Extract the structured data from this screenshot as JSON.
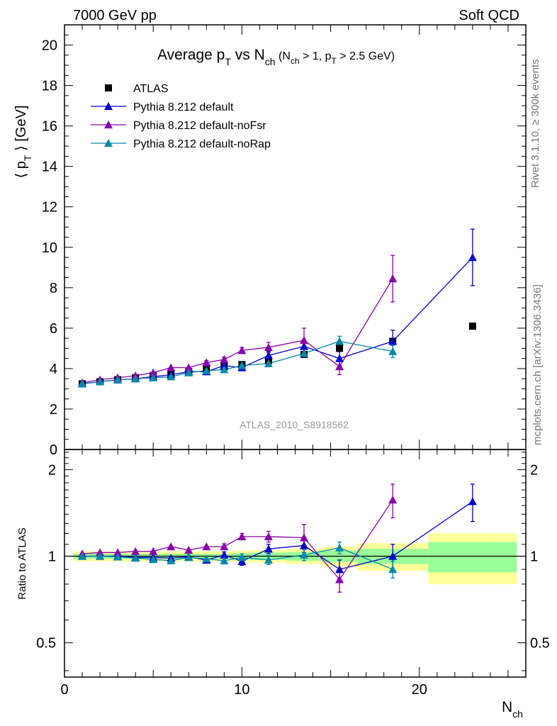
{
  "header": {
    "left": "7000 GeV pp",
    "right": "Soft QCD"
  },
  "side_text": {
    "rivet": "Rivet 3.1.10, ≥ 300k events",
    "mcplots": "mcplots.cern.ch [arXiv:1306.3436]"
  },
  "analysis_id": "ATLAS_2010_S8918562",
  "colors": {
    "atlas": "#000000",
    "default": "#0000cc",
    "noFsr": "#8800aa",
    "noRap": "#0088aa",
    "band_outer": "#ffff99",
    "band_inner": "#99ff99"
  },
  "chart_data": [
    {
      "type": "scatter",
      "panel": "main",
      "title": {
        "main": "Average p",
        "main_sub": "T",
        "vs": " vs N",
        "vs_sub": "ch",
        "cond1": " (N",
        "cond1_sub": "ch",
        "cond2": " > 1, p",
        "cond2_sub": "T",
        "cond3": " > 2.5 GeV)"
      },
      "ylabel": {
        "left": "⟨ p",
        "sub": "T",
        "right": " ⟩  [GeV]"
      },
      "xlim": [
        0,
        26
      ],
      "ylim": [
        0,
        21
      ],
      "yticks": [
        "0",
        "2",
        "4",
        "6",
        "8",
        "10",
        "12",
        "14",
        "16",
        "18",
        "20"
      ],
      "series": [
        {
          "name": "ATLAS",
          "marker": "square",
          "points": [
            {
              "x": 1,
              "y": 3.25
            },
            {
              "x": 2,
              "y": 3.35
            },
            {
              "x": 3,
              "y": 3.45
            },
            {
              "x": 4,
              "y": 3.55
            },
            {
              "x": 5,
              "y": 3.65
            },
            {
              "x": 6,
              "y": 3.75
            },
            {
              "x": 7,
              "y": 3.85
            },
            {
              "x": 8,
              "y": 3.98
            },
            {
              "x": 9,
              "y": 4.1
            },
            {
              "x": 10,
              "y": 4.2
            },
            {
              "x": 11.5,
              "y": 4.4
            },
            {
              "x": 13.5,
              "y": 4.7
            },
            {
              "x": 15.5,
              "y": 5.0
            },
            {
              "x": 18.5,
              "y": 5.35
            },
            {
              "x": 23,
              "y": 6.1
            }
          ]
        },
        {
          "name": "Pythia 8.212 default",
          "marker": "triangle",
          "points": [
            {
              "x": 1,
              "y": 3.25,
              "err": 0.05
            },
            {
              "x": 2,
              "y": 3.35,
              "err": 0.05
            },
            {
              "x": 3,
              "y": 3.45,
              "err": 0.05
            },
            {
              "x": 4,
              "y": 3.5,
              "err": 0.05
            },
            {
              "x": 5,
              "y": 3.6,
              "err": 0.05
            },
            {
              "x": 6,
              "y": 3.7,
              "err": 0.05
            },
            {
              "x": 7,
              "y": 3.85,
              "err": 0.05
            },
            {
              "x": 8,
              "y": 3.85,
              "err": 0.1
            },
            {
              "x": 9,
              "y": 4.15,
              "err": 0.1
            },
            {
              "x": 10,
              "y": 4.05,
              "err": 0.15
            },
            {
              "x": 11.5,
              "y": 4.65,
              "err": 0.2
            },
            {
              "x": 13.5,
              "y": 5.1,
              "err": 0.3
            },
            {
              "x": 15.5,
              "y": 4.5,
              "err": 0.35
            },
            {
              "x": 18.5,
              "y": 5.35,
              "err": 0.55
            },
            {
              "x": 23,
              "y": 9.5,
              "err": 1.4
            }
          ]
        },
        {
          "name": "Pythia 8.212 default-noFsr",
          "marker": "triangle",
          "points": [
            {
              "x": 1,
              "y": 3.3,
              "err": 0.05
            },
            {
              "x": 2,
              "y": 3.45,
              "err": 0.05
            },
            {
              "x": 3,
              "y": 3.55,
              "err": 0.05
            },
            {
              "x": 4,
              "y": 3.65,
              "err": 0.05
            },
            {
              "x": 5,
              "y": 3.8,
              "err": 0.05
            },
            {
              "x": 6,
              "y": 4.05,
              "err": 0.05
            },
            {
              "x": 7,
              "y": 4.05,
              "err": 0.05
            },
            {
              "x": 8,
              "y": 4.3,
              "err": 0.1
            },
            {
              "x": 9,
              "y": 4.45,
              "err": 0.12
            },
            {
              "x": 10,
              "y": 4.9,
              "err": 0.15
            },
            {
              "x": 11.5,
              "y": 5.05,
              "err": 0.25
            },
            {
              "x": 13.5,
              "y": 5.4,
              "err": 0.6
            },
            {
              "x": 15.5,
              "y": 4.1,
              "err": 0.4
            },
            {
              "x": 18.5,
              "y": 8.45,
              "err": 1.15
            },
            {
              "x": 23,
              "y": null,
              "err": 0
            }
          ]
        },
        {
          "name": "Pythia 8.212 default-noRap",
          "marker": "triangle",
          "points": [
            {
              "x": 1,
              "y": 3.25,
              "err": 0.05
            },
            {
              "x": 2,
              "y": 3.35,
              "err": 0.05
            },
            {
              "x": 3,
              "y": 3.45,
              "err": 0.05
            },
            {
              "x": 4,
              "y": 3.5,
              "err": 0.05
            },
            {
              "x": 5,
              "y": 3.55,
              "err": 0.05
            },
            {
              "x": 6,
              "y": 3.6,
              "err": 0.05
            },
            {
              "x": 7,
              "y": 3.8,
              "err": 0.05
            },
            {
              "x": 8,
              "y": 3.9,
              "err": 0.08
            },
            {
              "x": 9,
              "y": 3.95,
              "err": 0.1
            },
            {
              "x": 10,
              "y": 4.15,
              "err": 0.12
            },
            {
              "x": 11.5,
              "y": 4.25,
              "err": 0.15
            },
            {
              "x": 13.5,
              "y": 4.75,
              "err": 0.2
            },
            {
              "x": 15.5,
              "y": 5.35,
              "err": 0.25
            },
            {
              "x": 18.5,
              "y": 4.85,
              "err": 0.3
            },
            {
              "x": 23,
              "y": null,
              "err": 0
            }
          ]
        }
      ]
    },
    {
      "type": "scatter",
      "panel": "ratio",
      "ylabel": "Ratio to ATLAS",
      "xlabel": "N",
      "xlabel_sub": "ch",
      "xlim": [
        0,
        26
      ],
      "ylim": [
        0.38,
        2.35
      ],
      "log_y": true,
      "xticks": [
        "0",
        "10",
        "20"
      ],
      "yticks": [
        "0.5",
        "1",
        "2"
      ],
      "bands": [
        {
          "x0": 0.5,
          "x1": 1.5,
          "outer": 0.04,
          "inner": 0.02
        },
        {
          "x0": 1.5,
          "x1": 2.5,
          "outer": 0.04,
          "inner": 0.02
        },
        {
          "x0": 2.5,
          "x1": 3.5,
          "outer": 0.04,
          "inner": 0.02
        },
        {
          "x0": 3.5,
          "x1": 4.5,
          "outer": 0.04,
          "inner": 0.02
        },
        {
          "x0": 4.5,
          "x1": 5.5,
          "outer": 0.04,
          "inner": 0.02
        },
        {
          "x0": 5.5,
          "x1": 6.5,
          "outer": 0.04,
          "inner": 0.02
        },
        {
          "x0": 6.5,
          "x1": 7.5,
          "outer": 0.04,
          "inner": 0.02
        },
        {
          "x0": 7.5,
          "x1": 8.5,
          "outer": 0.04,
          "inner": 0.02
        },
        {
          "x0": 8.5,
          "x1": 9.5,
          "outer": 0.04,
          "inner": 0.02
        },
        {
          "x0": 9.5,
          "x1": 10.5,
          "outer": 0.045,
          "inner": 0.025
        },
        {
          "x0": 10.5,
          "x1": 12.5,
          "outer": 0.05,
          "inner": 0.03
        },
        {
          "x0": 12.5,
          "x1": 14.5,
          "outer": 0.06,
          "inner": 0.035
        },
        {
          "x0": 14.5,
          "x1": 16.5,
          "outer": 0.08,
          "inner": 0.045
        },
        {
          "x0": 16.5,
          "x1": 20.5,
          "outer": 0.11,
          "inner": 0.06
        },
        {
          "x0": 20.5,
          "x1": 25.5,
          "outer": 0.2,
          "inner": 0.12
        }
      ],
      "series": [
        {
          "name": "Pythia 8.212 default",
          "points": [
            {
              "x": 1,
              "y": 1.0,
              "err": 0.015
            },
            {
              "x": 2,
              "y": 1.0,
              "err": 0.015
            },
            {
              "x": 3,
              "y": 1.0,
              "err": 0.015
            },
            {
              "x": 4,
              "y": 0.99,
              "err": 0.015
            },
            {
              "x": 5,
              "y": 0.99,
              "err": 0.015
            },
            {
              "x": 6,
              "y": 0.985,
              "err": 0.015
            },
            {
              "x": 7,
              "y": 0.995,
              "err": 0.015
            },
            {
              "x": 8,
              "y": 0.97,
              "err": 0.02
            },
            {
              "x": 9,
              "y": 1.01,
              "err": 0.025
            },
            {
              "x": 10,
              "y": 0.96,
              "err": 0.03
            },
            {
              "x": 11.5,
              "y": 1.06,
              "err": 0.04
            },
            {
              "x": 13.5,
              "y": 1.09,
              "err": 0.06
            },
            {
              "x": 15.5,
              "y": 0.9,
              "err": 0.07
            },
            {
              "x": 18.5,
              "y": 1.0,
              "err": 0.1
            },
            {
              "x": 23,
              "y": 1.55,
              "err": 0.23
            }
          ]
        },
        {
          "name": "Pythia 8.212 default-noFsr",
          "points": [
            {
              "x": 1,
              "y": 1.02,
              "err": 0.015
            },
            {
              "x": 2,
              "y": 1.03,
              "err": 0.015
            },
            {
              "x": 3,
              "y": 1.03,
              "err": 0.015
            },
            {
              "x": 4,
              "y": 1.04,
              "err": 0.015
            },
            {
              "x": 5,
              "y": 1.04,
              "err": 0.015
            },
            {
              "x": 6,
              "y": 1.08,
              "err": 0.015
            },
            {
              "x": 7,
              "y": 1.05,
              "err": 0.015
            },
            {
              "x": 8,
              "y": 1.08,
              "err": 0.02
            },
            {
              "x": 9,
              "y": 1.08,
              "err": 0.025
            },
            {
              "x": 10,
              "y": 1.17,
              "err": 0.03
            },
            {
              "x": 11.5,
              "y": 1.17,
              "err": 0.05
            },
            {
              "x": 13.5,
              "y": 1.16,
              "err": 0.13
            },
            {
              "x": 15.5,
              "y": 0.83,
              "err": 0.08
            },
            {
              "x": 18.5,
              "y": 1.57,
              "err": 0.21
            }
          ]
        },
        {
          "name": "Pythia 8.212 default-noRap",
          "points": [
            {
              "x": 1,
              "y": 1.0,
              "err": 0.015
            },
            {
              "x": 2,
              "y": 1.0,
              "err": 0.015
            },
            {
              "x": 3,
              "y": 0.995,
              "err": 0.015
            },
            {
              "x": 4,
              "y": 0.985,
              "err": 0.015
            },
            {
              "x": 5,
              "y": 0.975,
              "err": 0.015
            },
            {
              "x": 6,
              "y": 0.965,
              "err": 0.015
            },
            {
              "x": 7,
              "y": 0.99,
              "err": 0.015
            },
            {
              "x": 8,
              "y": 0.98,
              "err": 0.02
            },
            {
              "x": 9,
              "y": 0.965,
              "err": 0.025
            },
            {
              "x": 10,
              "y": 0.99,
              "err": 0.03
            },
            {
              "x": 11.5,
              "y": 0.97,
              "err": 0.035
            },
            {
              "x": 13.5,
              "y": 1.01,
              "err": 0.045
            },
            {
              "x": 15.5,
              "y": 1.07,
              "err": 0.05
            },
            {
              "x": 18.5,
              "y": 0.9,
              "err": 0.06
            }
          ]
        }
      ]
    }
  ]
}
